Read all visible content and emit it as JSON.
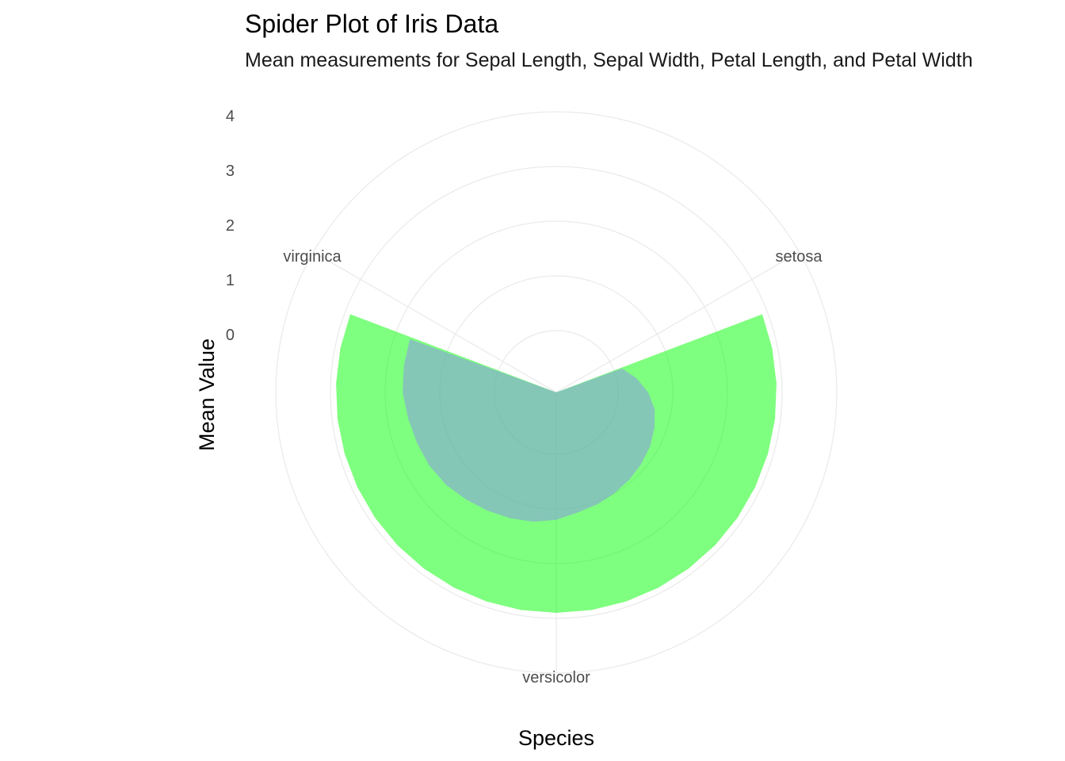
{
  "chart_data": {
    "type": "polar-area",
    "title": "Spider Plot of Iris Data",
    "subtitle": "Mean measurements for Sepal Length, Sepal Width, Petal Length, and Petal Width",
    "xlabel": "Species",
    "ylabel": "Mean Value",
    "categories": [
      "setosa",
      "versicolor",
      "virginica"
    ],
    "radial_ticks": [
      "0",
      "1",
      "2",
      "3",
      "4"
    ],
    "radial_max": 4,
    "grid": true,
    "legend": "none",
    "layers": [
      {
        "fill": "#00ff00",
        "opacity": 0.5,
        "r": [
          0,
          2.9,
          2.9,
          2.9,
          2.9,
          2.9,
          2.9,
          2.9,
          2.9,
          2.9,
          2.9,
          2.9,
          2.9,
          2.9,
          2.9,
          2.9,
          2.9,
          2.9,
          2.9,
          2.9,
          2.9,
          2.9,
          2.9,
          2.9,
          2.9,
          2.9,
          0
        ]
      },
      {
        "fill": "#8b8ff0",
        "opacity": 0.5,
        "r": [
          0,
          0.15,
          0.36,
          0.55,
          0.7,
          0.78,
          0.85,
          0.9,
          0.95,
          1.0,
          1.05,
          1.1,
          1.2,
          1.27,
          1.32,
          1.37,
          1.43,
          1.5,
          1.55,
          1.58,
          1.62,
          1.68,
          1.7,
          1.72,
          0
        ]
      }
    ]
  }
}
